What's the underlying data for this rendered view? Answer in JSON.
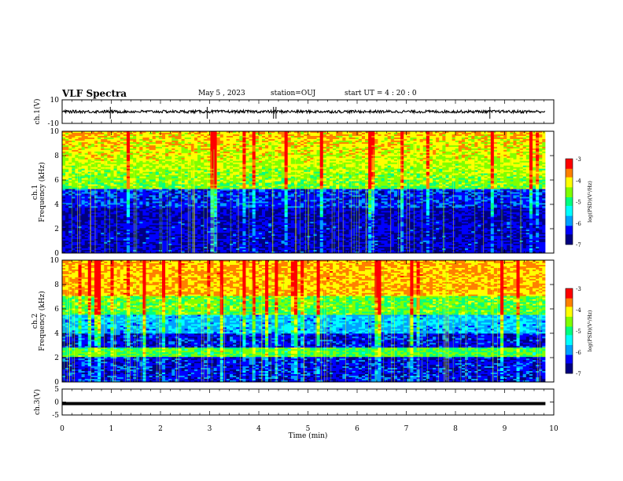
{
  "header": {
    "title": "VLF Spectra",
    "date": "May 5 , 2023",
    "station": "station=OUJ",
    "start": "start UT =  4 : 20 : 0"
  },
  "colors": {
    "colormap": [
      "#000080",
      "#0000ff",
      "#00a0ff",
      "#00ffff",
      "#00ff80",
      "#80ff00",
      "#ffff00",
      "#ff8000",
      "#ff0000"
    ],
    "trace": "#000000",
    "frame": "#000000",
    "background": "#ffffff"
  },
  "chart_data": [
    {
      "type": "line",
      "panel": "ch1-waveform",
      "ylabel": "ch.1(V)",
      "ylim": [
        -10,
        10
      ],
      "yticks": [
        "10",
        "-10"
      ],
      "xlim": [
        0,
        10
      ],
      "series": [
        {
          "values_note": "",
          "baseline": 0,
          "amplitude": 1.2
        }
      ]
    },
    {
      "type": "heatmap",
      "panel": "ch1-spectrogram",
      "ylabel": "ch.1 Frequency (kHz)",
      "ylim": [
        0,
        10
      ],
      "yticks": [
        "0",
        "2",
        "4",
        "6",
        "8",
        "10"
      ],
      "xlim": [
        0,
        10
      ],
      "colorbar": {
        "label": "log(PSD)(V²/Hz)",
        "range": [
          -7,
          -3
        ],
        "ticks": [
          "-3",
          "-4",
          "-5",
          "-6",
          "-7"
        ]
      }
    },
    {
      "type": "heatmap",
      "panel": "ch2-spectrogram",
      "ylabel": "ch.2 Frequency (kHz)",
      "ylim": [
        0,
        10
      ],
      "yticks": [
        "0",
        "2",
        "4",
        "6",
        "8",
        "10"
      ],
      "xlim": [
        0,
        10
      ],
      "colorbar": {
        "label": "log(PSD)(V²/Hz)",
        "range": [
          -7,
          -3
        ],
        "ticks": [
          "-3",
          "-4",
          "-5",
          "-6",
          "-7"
        ]
      }
    },
    {
      "type": "line",
      "panel": "ch3-waveform",
      "ylabel": "ch.3(V)",
      "ylim": [
        -5,
        5
      ],
      "yticks": [
        "5",
        "0",
        "-5"
      ],
      "xlim": [
        0,
        10
      ],
      "series": [
        {
          "baseline": -0.6,
          "amplitude": 0
        }
      ]
    }
  ],
  "xaxis": {
    "label": "Time (min)",
    "ticks": [
      "0",
      "1",
      "2",
      "3",
      "4",
      "5",
      "6",
      "7",
      "8",
      "9",
      "10"
    ],
    "data_end": 9.83
  }
}
